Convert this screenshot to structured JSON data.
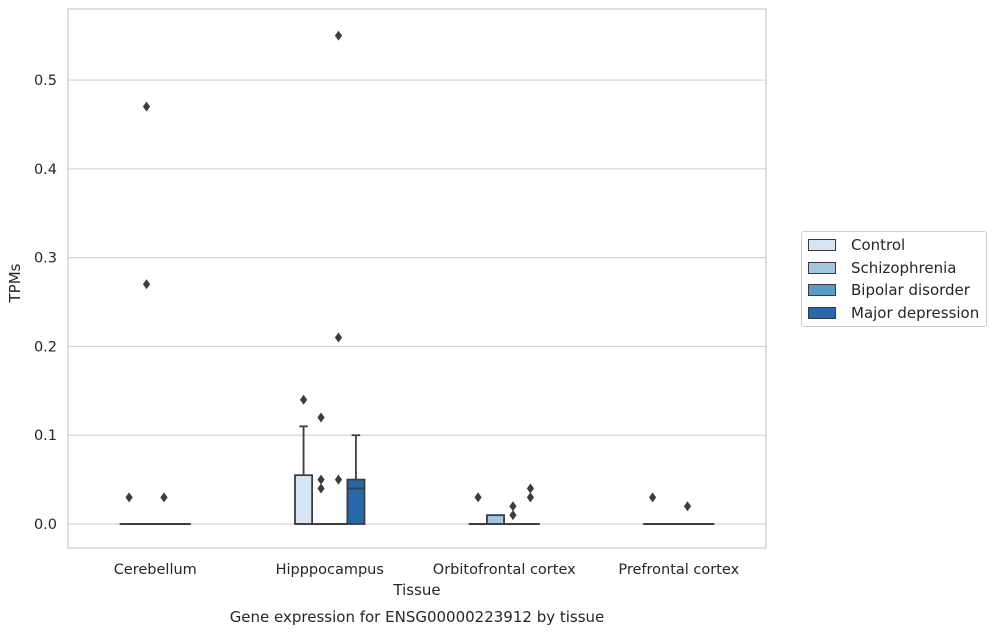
{
  "chart_data": {
    "type": "box",
    "caption": "Gene expression for ENSG00000223912 by tissue",
    "xlabel": "Tissue",
    "ylabel": "TPMs",
    "ylim": [
      -0.027,
      0.58
    ],
    "yticks": [
      0.0,
      0.1,
      0.2,
      0.3,
      0.4,
      0.5
    ],
    "ytick_labels": [
      "0.0",
      "0.1",
      "0.2",
      "0.3",
      "0.4",
      "0.5"
    ],
    "grid": true,
    "legend_position": "right",
    "categories": [
      "Cerebellum",
      "Hipppocampus",
      "Orbitofrontal cortex",
      "Prefrontal cortex"
    ],
    "series": [
      {
        "name": "Control",
        "color": "#d6e5f4",
        "boxes": [
          {
            "q1": 0,
            "median": 0,
            "q3": 0,
            "whisker_low": 0,
            "whisker_high": 0,
            "outliers": [
              0.03
            ]
          },
          {
            "q1": 0,
            "median": 0,
            "q3": 0.055,
            "whisker_low": 0,
            "whisker_high": 0.11,
            "outliers": [
              0.14
            ]
          },
          {
            "q1": 0,
            "median": 0,
            "q3": 0,
            "whisker_low": 0,
            "whisker_high": 0,
            "outliers": [
              0.03
            ]
          },
          {
            "q1": 0,
            "median": 0,
            "q3": 0,
            "whisker_low": 0,
            "whisker_high": 0,
            "outliers": [
              0.03
            ]
          }
        ]
      },
      {
        "name": "Schizophrenia",
        "color": "#a0c6e0",
        "boxes": [
          {
            "q1": 0,
            "median": 0,
            "q3": 0,
            "whisker_low": 0,
            "whisker_high": 0,
            "outliers": [
              0.47,
              0.27
            ]
          },
          {
            "q1": 0,
            "median": 0,
            "q3": 0,
            "whisker_low": 0,
            "whisker_high": 0,
            "outliers": [
              0.12,
              0.05,
              0.04
            ]
          },
          {
            "q1": 0,
            "median": 0,
            "q3": 0.01,
            "whisker_low": 0,
            "whisker_high": 0.01,
            "outliers": []
          },
          {
            "q1": 0,
            "median": 0,
            "q3": 0,
            "whisker_low": 0,
            "whisker_high": 0,
            "outliers": []
          }
        ]
      },
      {
        "name": "Bipolar disorder",
        "color": "#5a9ac9",
        "boxes": [
          {
            "q1": 0,
            "median": 0,
            "q3": 0,
            "whisker_low": 0,
            "whisker_high": 0,
            "outliers": [
              0.03
            ]
          },
          {
            "q1": 0,
            "median": 0,
            "q3": 0,
            "whisker_low": 0,
            "whisker_high": 0,
            "outliers": [
              0.55,
              0.21,
              0.05
            ]
          },
          {
            "q1": 0,
            "median": 0,
            "q3": 0,
            "whisker_low": 0,
            "whisker_high": 0,
            "outliers": [
              0.02,
              0.01
            ]
          },
          {
            "q1": 0,
            "median": 0,
            "q3": 0,
            "whisker_low": 0,
            "whisker_high": 0,
            "outliers": [
              0.02
            ]
          }
        ]
      },
      {
        "name": "Major depression",
        "color": "#2668a9",
        "boxes": [
          {
            "q1": 0,
            "median": 0,
            "q3": 0,
            "whisker_low": 0,
            "whisker_high": 0,
            "outliers": []
          },
          {
            "q1": 0,
            "median": 0.04,
            "q3": 0.05,
            "whisker_low": 0,
            "whisker_high": 0.1,
            "outliers": []
          },
          {
            "q1": 0,
            "median": 0,
            "q3": 0,
            "whisker_low": 0,
            "whisker_high": 0,
            "outliers": [
              0.04,
              0.03
            ]
          },
          {
            "q1": 0,
            "median": 0,
            "q3": 0,
            "whisker_low": 0,
            "whisker_high": 0,
            "outliers": []
          }
        ]
      }
    ]
  }
}
